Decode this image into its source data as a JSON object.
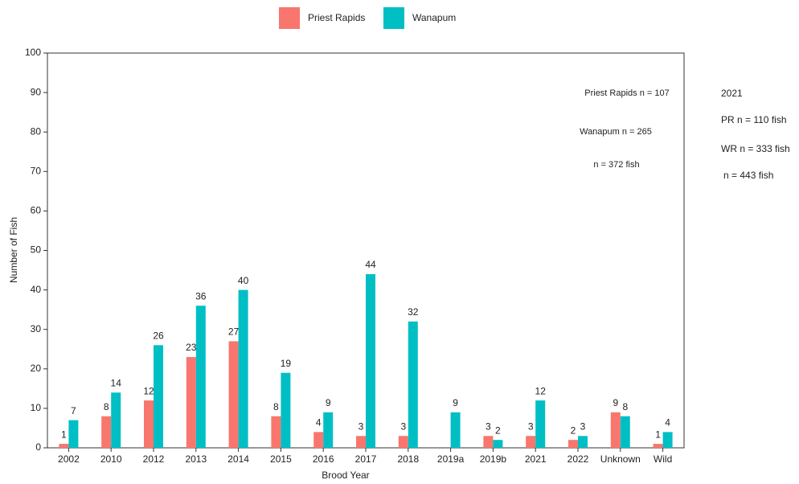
{
  "chart_data": {
    "type": "bar",
    "x_label": "Brood Year",
    "y_label": "Number of Fish",
    "categories": [
      "2002",
      "2010",
      "2012",
      "2013",
      "2014",
      "2015",
      "2016",
      "2017",
      "2018",
      "2019a",
      "2019b",
      "2021",
      "2022",
      "Unknown",
      "Wild"
    ],
    "series": [
      {
        "name": "Priest Rapids",
        "color": "#f8766d",
        "values": [
          1,
          8,
          12,
          23,
          27,
          8,
          4,
          3,
          3,
          null,
          3,
          3,
          2,
          9,
          1
        ]
      },
      {
        "name": "Wanapum",
        "color": "#00bfc4",
        "values": [
          7,
          14,
          26,
          36,
          40,
          19,
          9,
          44,
          32,
          9,
          2,
          12,
          3,
          8,
          4
        ]
      }
    ],
    "ylim": [
      0,
      100
    ],
    "yticks": [
      0,
      10,
      20,
      30,
      40,
      50,
      60,
      70,
      80,
      90,
      100
    ],
    "legend": "top",
    "grid": false,
    "annotations": [
      "Priest Rapids n = 107",
      "Wanapum n = 265",
      "n = 372 fish",
      "2021",
      "PR n = 110 fish",
      "WR n = 333 fish",
      "n = 443 fish"
    ]
  }
}
